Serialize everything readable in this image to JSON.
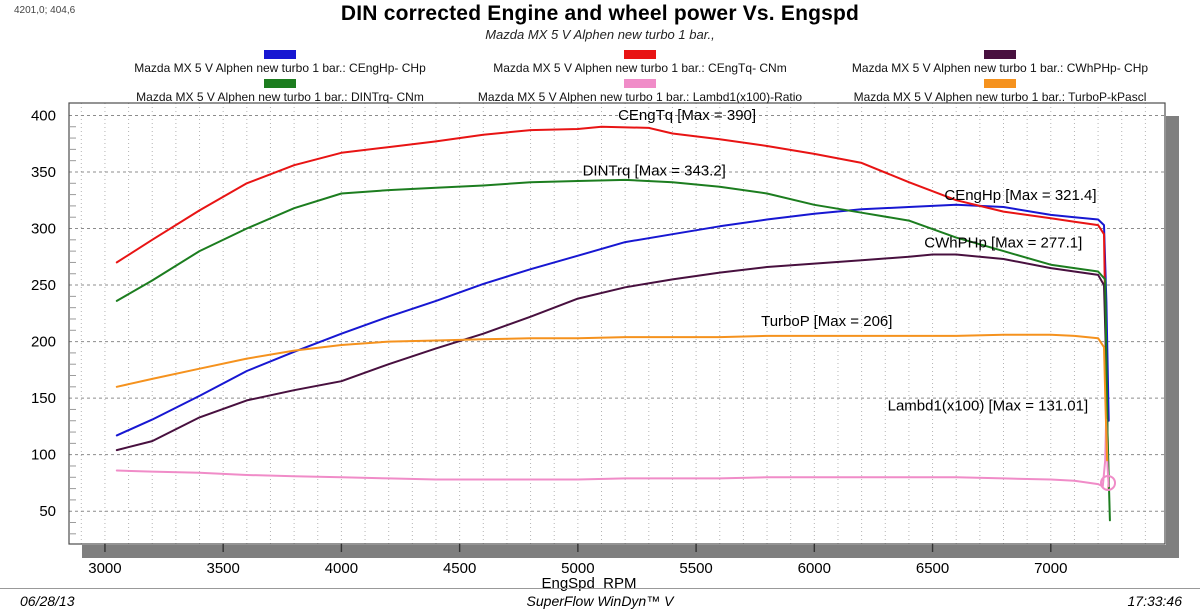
{
  "window": {
    "cursor_readout": "4201,0; 404,6"
  },
  "header": {
    "title": "DIN corrected Engine and wheel power Vs. Engspd",
    "subtitle": "Mazda MX 5 V Alphen new turbo 1 bar.,"
  },
  "footer": {
    "date": "06/28/13",
    "app": "SuperFlow WinDyn™ V",
    "time": "17:33:46"
  },
  "chart_data": {
    "type": "line",
    "title": "DIN corrected Engine and wheel power Vs. Engspd",
    "subtitle": "Mazda MX 5 V Alphen new turbo 1 bar.,",
    "xlabel": "EngSpd  RPM",
    "ylabel": "",
    "xlim": [
      2848,
      7483
    ],
    "ylim": [
      21,
      411
    ],
    "x_ticks": [
      3000,
      3500,
      4000,
      4500,
      5000,
      5500,
      6000,
      6500,
      7000
    ],
    "y_ticks": [
      50,
      100,
      150,
      200,
      250,
      300,
      350,
      400
    ],
    "grid": {
      "x_minor_step": 100,
      "y_major_step": 50,
      "y_minor_tick_step": 10
    },
    "legend_position": "top",
    "series": [
      {
        "name": "CEngHp",
        "unit": "CHp",
        "color": "#1717d2",
        "legend_label": "Mazda MX 5 V Alphen new turbo 1 bar.: CEngHp-  CHp",
        "annotation": "CEngHp [Max = 321.4]",
        "max": 321.4,
        "label_at": [
          6550,
          325
        ],
        "points": [
          [
            3050,
            117
          ],
          [
            3200,
            131
          ],
          [
            3400,
            152
          ],
          [
            3600,
            174
          ],
          [
            3800,
            191
          ],
          [
            4000,
            207
          ],
          [
            4200,
            222
          ],
          [
            4400,
            236
          ],
          [
            4600,
            251
          ],
          [
            4800,
            264
          ],
          [
            5000,
            276
          ],
          [
            5200,
            288
          ],
          [
            5400,
            295
          ],
          [
            5600,
            302
          ],
          [
            5800,
            308
          ],
          [
            6000,
            313
          ],
          [
            6200,
            317
          ],
          [
            6400,
            319
          ],
          [
            6600,
            321
          ],
          [
            6800,
            319
          ],
          [
            7000,
            312
          ],
          [
            7100,
            310
          ],
          [
            7200,
            308
          ],
          [
            7225,
            303
          ],
          [
            7235,
            235
          ],
          [
            7245,
            130
          ]
        ]
      },
      {
        "name": "CEngTq",
        "unit": "CNm",
        "color": "#e81414",
        "legend_label": "Mazda MX 5 V Alphen new turbo 1 bar.: CEngTq-  CNm",
        "annotation": "CEngTq [Max = 390]",
        "max": 390,
        "label_at": [
          5170,
          396
        ],
        "points": [
          [
            3050,
            270
          ],
          [
            3200,
            290
          ],
          [
            3400,
            316
          ],
          [
            3600,
            340
          ],
          [
            3800,
            356
          ],
          [
            4000,
            367
          ],
          [
            4200,
            372
          ],
          [
            4400,
            377
          ],
          [
            4600,
            383
          ],
          [
            4800,
            387
          ],
          [
            5000,
            388
          ],
          [
            5100,
            390
          ],
          [
            5300,
            389
          ],
          [
            5400,
            384
          ],
          [
            5600,
            379
          ],
          [
            5800,
            373
          ],
          [
            6000,
            366
          ],
          [
            6200,
            358
          ],
          [
            6400,
            341
          ],
          [
            6600,
            325
          ],
          [
            6800,
            315
          ],
          [
            7000,
            309
          ],
          [
            7100,
            306
          ],
          [
            7200,
            303
          ],
          [
            7225,
            295
          ],
          [
            7235,
            160
          ],
          [
            7245,
            70
          ]
        ]
      },
      {
        "name": "CWhPHp",
        "unit": "CHp",
        "color": "#48103f",
        "legend_label": "Mazda MX 5 V Alphen new turbo 1 bar.: CWhPHp-  CHp",
        "annotation": "CWhPHp [Max = 277.1]",
        "max": 277.1,
        "label_at": [
          6465,
          283
        ],
        "points": [
          [
            3050,
            104
          ],
          [
            3200,
            112
          ],
          [
            3400,
            133
          ],
          [
            3600,
            148
          ],
          [
            3800,
            157
          ],
          [
            4000,
            165
          ],
          [
            4200,
            180
          ],
          [
            4400,
            194
          ],
          [
            4600,
            207
          ],
          [
            4800,
            222
          ],
          [
            5000,
            238
          ],
          [
            5200,
            248
          ],
          [
            5400,
            255
          ],
          [
            5600,
            261
          ],
          [
            5800,
            266
          ],
          [
            6000,
            269
          ],
          [
            6200,
            272
          ],
          [
            6400,
            275
          ],
          [
            6500,
            277
          ],
          [
            6600,
            277
          ],
          [
            6800,
            273
          ],
          [
            7000,
            265
          ],
          [
            7100,
            262
          ],
          [
            7200,
            259
          ],
          [
            7225,
            250
          ],
          [
            7235,
            175
          ],
          [
            7240,
            120
          ]
        ]
      },
      {
        "name": "DINTrq",
        "unit": "CNm",
        "color": "#1c7d1f",
        "legend_label": "Mazda MX 5 V Alphen new turbo 1 bar.: DINTrq-  CNm",
        "annotation": "DINTrq [Max = 343.2]",
        "max": 343.2,
        "label_at": [
          5020,
          347
        ],
        "points": [
          [
            3050,
            236
          ],
          [
            3200,
            254
          ],
          [
            3400,
            280
          ],
          [
            3600,
            300
          ],
          [
            3800,
            318
          ],
          [
            4000,
            331
          ],
          [
            4200,
            334
          ],
          [
            4400,
            336
          ],
          [
            4600,
            338
          ],
          [
            4800,
            341
          ],
          [
            5000,
            342
          ],
          [
            5200,
            343
          ],
          [
            5400,
            341
          ],
          [
            5600,
            337
          ],
          [
            5800,
            331
          ],
          [
            6000,
            321
          ],
          [
            6200,
            314
          ],
          [
            6400,
            307
          ],
          [
            6600,
            292
          ],
          [
            6800,
            280
          ],
          [
            7000,
            268
          ],
          [
            7100,
            265
          ],
          [
            7200,
            262
          ],
          [
            7230,
            255
          ],
          [
            7240,
            120
          ],
          [
            7250,
            42
          ]
        ]
      },
      {
        "name": "Lambd1(x100)",
        "unit": "Ratio",
        "color": "#f08cc8",
        "legend_label": "Mazda MX 5 V Alphen new turbo 1 bar.: Lambd1(x100)-Ratio",
        "annotation": "Lambd1(x100) [Max = 131.01]",
        "max": 131.01,
        "label_at": [
          6310,
          139
        ],
        "end_marker": [
          7242,
          75
        ],
        "points": [
          [
            3050,
            86
          ],
          [
            3200,
            85
          ],
          [
            3400,
            84
          ],
          [
            3600,
            82
          ],
          [
            3800,
            81
          ],
          [
            4000,
            80
          ],
          [
            4200,
            79
          ],
          [
            4400,
            78
          ],
          [
            4600,
            78
          ],
          [
            4800,
            78
          ],
          [
            5000,
            78
          ],
          [
            5200,
            79
          ],
          [
            5400,
            79
          ],
          [
            5600,
            79
          ],
          [
            5800,
            80
          ],
          [
            6000,
            80
          ],
          [
            6200,
            80
          ],
          [
            6400,
            80
          ],
          [
            6600,
            80
          ],
          [
            6800,
            79
          ],
          [
            7000,
            78
          ],
          [
            7100,
            77
          ],
          [
            7200,
            74
          ],
          [
            7220,
            72
          ],
          [
            7230,
            95
          ],
          [
            7234,
            131
          ],
          [
            7240,
            90
          ],
          [
            7245,
            72
          ]
        ]
      },
      {
        "name": "TurboP",
        "unit": "kPascl",
        "color": "#f5921e",
        "legend_label": "Mazda MX 5 V Alphen new turbo 1 bar.: TurboP-kPascl",
        "annotation": "TurboP [Max = 206]",
        "max": 206,
        "label_at": [
          5775,
          214
        ],
        "points": [
          [
            3050,
            160
          ],
          [
            3200,
            167
          ],
          [
            3400,
            176
          ],
          [
            3600,
            185
          ],
          [
            3800,
            192
          ],
          [
            4000,
            197
          ],
          [
            4200,
            200
          ],
          [
            4400,
            201
          ],
          [
            4600,
            202
          ],
          [
            4800,
            203
          ],
          [
            5000,
            203
          ],
          [
            5200,
            204
          ],
          [
            5400,
            204
          ],
          [
            5600,
            204
          ],
          [
            5800,
            205
          ],
          [
            6000,
            205
          ],
          [
            6200,
            205
          ],
          [
            6400,
            205
          ],
          [
            6600,
            205
          ],
          [
            6800,
            206
          ],
          [
            7000,
            206
          ],
          [
            7100,
            205
          ],
          [
            7200,
            203
          ],
          [
            7225,
            195
          ],
          [
            7232,
            140
          ],
          [
            7238,
            95
          ]
        ]
      }
    ]
  }
}
